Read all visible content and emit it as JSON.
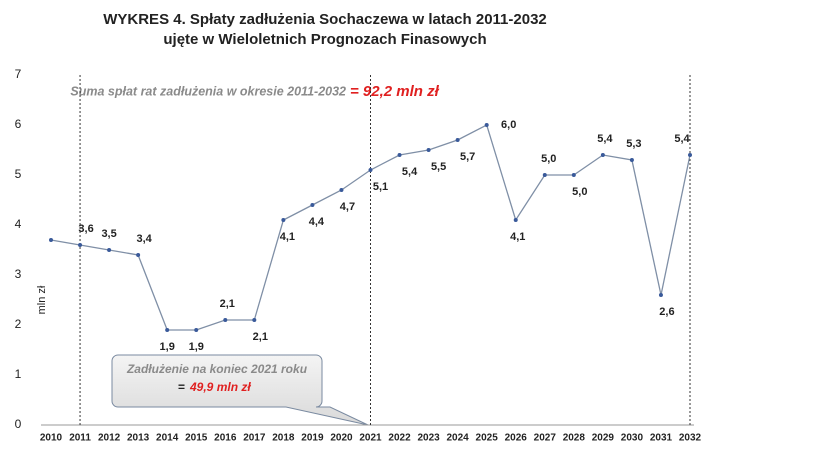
{
  "chart_data": {
    "type": "line",
    "title": "WYKRES 4.  Spłaty zadłużenia Sochaczewa w latach 2011-2032",
    "subtitle": "ujęte w Wieloletnich Prognozach Finasowych",
    "y_label": "mln zł",
    "annotation_sum": {
      "text": "Suma spłat rat zadłużenia w okresie 2011-2032",
      "value": "= 92,2 mln zł"
    },
    "annotation_debt": {
      "text": "Zadłużenie na koniec 2021 roku",
      "equals": "=",
      "value": "49,9 mln zł"
    },
    "categories": [
      "2010",
      "2011",
      "2012",
      "2013",
      "2014",
      "2015",
      "2016",
      "2017",
      "2018",
      "2019",
      "2020",
      "2021",
      "2022",
      "2023",
      "2024",
      "2025",
      "2026",
      "2027",
      "2028",
      "2029",
      "2030",
      "2031",
      "2032"
    ],
    "series": [
      {
        "name": "Spłaty",
        "color": "#7f8fa6",
        "values": [
          3.7,
          3.6,
          3.5,
          3.4,
          1.9,
          1.9,
          2.1,
          2.1,
          4.1,
          4.4,
          4.7,
          5.1,
          5.4,
          5.5,
          5.7,
          6.0,
          4.1,
          5.0,
          5.0,
          5.4,
          5.3,
          2.6,
          5.4
        ],
        "value_labels": [
          null,
          "3,6",
          "3,5",
          "3,4",
          "1,9",
          "1,9",
          "2,1",
          "2,1",
          "4,1",
          "4,4",
          "4,7",
          "5,1",
          "5,4",
          "5,5",
          "5,7",
          "6,0",
          "4,1",
          "5,0",
          "5,0",
          "5,4",
          "5,3",
          "2,6",
          "5,4"
        ]
      }
    ],
    "ylim": [
      0,
      7
    ],
    "yticks": [
      0,
      1,
      2,
      3,
      4,
      5,
      6,
      7
    ],
    "grid": false
  }
}
